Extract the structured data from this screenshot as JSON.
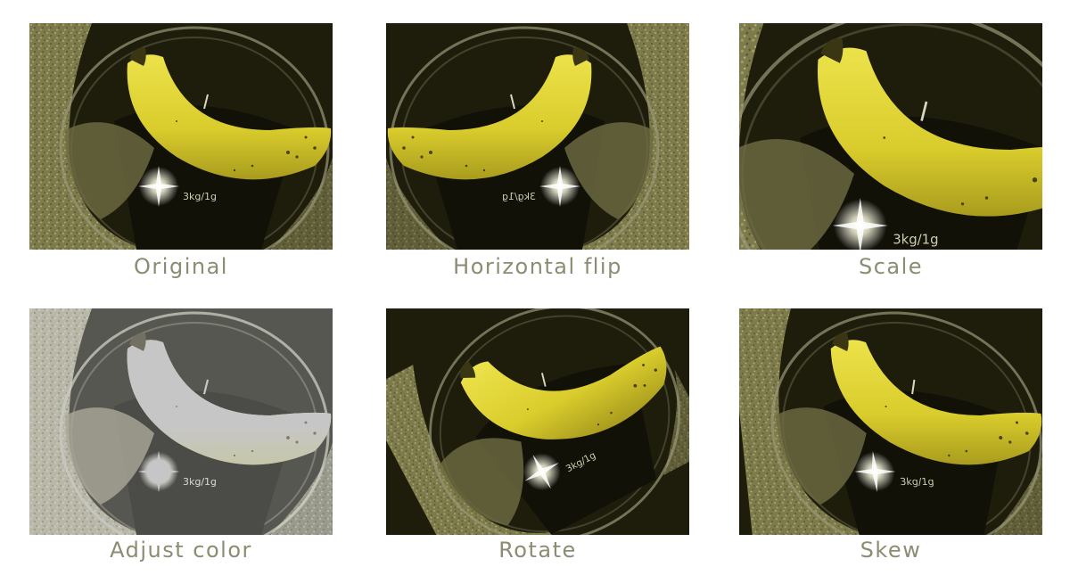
{
  "panels": [
    {
      "id": "original",
      "caption": "Original",
      "scale_label": "3kg/1g"
    },
    {
      "id": "horizontal-flip",
      "caption": "Horizontal flip",
      "scale_label": "3kg/1g"
    },
    {
      "id": "scale",
      "caption": "Scale",
      "scale_label": "3kg/1g"
    },
    {
      "id": "adjust-color",
      "caption": "Adjust color",
      "scale_label": "3kg/1g"
    },
    {
      "id": "rotate",
      "caption": "Rotate",
      "scale_label": "3kg/1g"
    },
    {
      "id": "skew",
      "caption": "Skew",
      "scale_label": "3kg/1g"
    }
  ],
  "colors": {
    "caption": "#8c8c72",
    "banana": "#dcd030",
    "background": "#1e1d0c"
  }
}
